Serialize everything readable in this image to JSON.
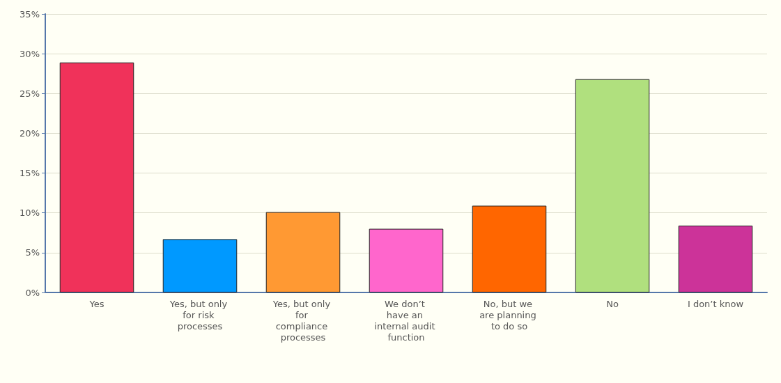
{
  "chart_data": {
    "type": "bar",
    "categories": [
      "Yes",
      "Yes, but only for risk processes",
      "Yes, but only for compliance processes",
      "We don’t have an internal audit function",
      "No, but we are planning to do so",
      "No",
      "I don’t know"
    ],
    "values": [
      28.9,
      6.7,
      10.1,
      8.0,
      10.9,
      26.8,
      8.4
    ],
    "colors": [
      "#f0325a",
      "#0099ff",
      "#ff9933",
      "#ff66cc",
      "#ff6600",
      "#b0e07e",
      "#cc3399"
    ],
    "ylim": [
      0,
      35
    ],
    "yticks": [
      {
        "value": 0,
        "label": "0%"
      },
      {
        "value": 5,
        "label": "5%"
      },
      {
        "value": 10,
        "label": "10%"
      },
      {
        "value": 15,
        "label": "15%"
      },
      {
        "value": 20,
        "label": "20%"
      },
      {
        "value": 25,
        "label": "25%"
      },
      {
        "value": 30,
        "label": "30%"
      },
      {
        "value": 35,
        "label": "35%"
      }
    ],
    "grid": "y"
  }
}
